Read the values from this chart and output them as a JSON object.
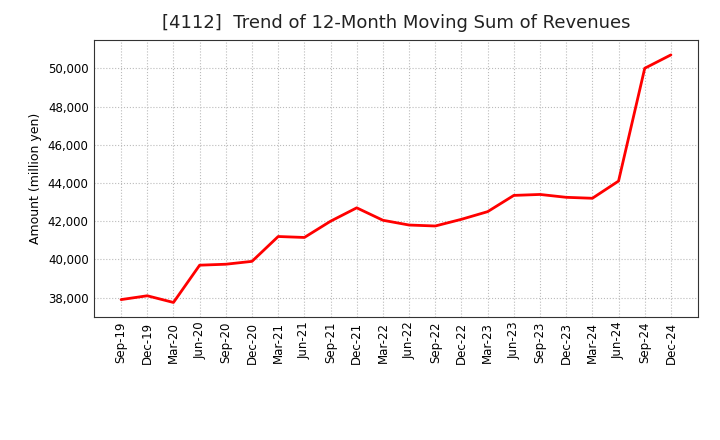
{
  "title": "[4112]  Trend of 12-Month Moving Sum of Revenues",
  "ylabel": "Amount (million yen)",
  "line_color": "#FF0000",
  "background_color": "#FFFFFF",
  "grid_color": "#BBBBBB",
  "ylim": [
    37000,
    51500
  ],
  "yticks": [
    38000,
    40000,
    42000,
    44000,
    46000,
    48000,
    50000
  ],
  "x_labels": [
    "Sep-19",
    "Dec-19",
    "Mar-20",
    "Jun-20",
    "Sep-20",
    "Dec-20",
    "Mar-21",
    "Jun-21",
    "Sep-21",
    "Dec-21",
    "Mar-22",
    "Jun-22",
    "Sep-22",
    "Dec-22",
    "Mar-23",
    "Jun-23",
    "Sep-23",
    "Dec-23",
    "Mar-24",
    "Jun-24",
    "Sep-24",
    "Dec-24"
  ],
  "values": [
    37900,
    38100,
    37750,
    39700,
    39750,
    39900,
    41200,
    41150,
    42000,
    42700,
    42050,
    41800,
    41750,
    42100,
    42500,
    43350,
    43400,
    43250,
    43200,
    44100,
    50000,
    50700
  ],
  "title_fontsize": 13,
  "axis_label_fontsize": 9,
  "tick_fontsize": 8.5,
  "linewidth": 2.0
}
